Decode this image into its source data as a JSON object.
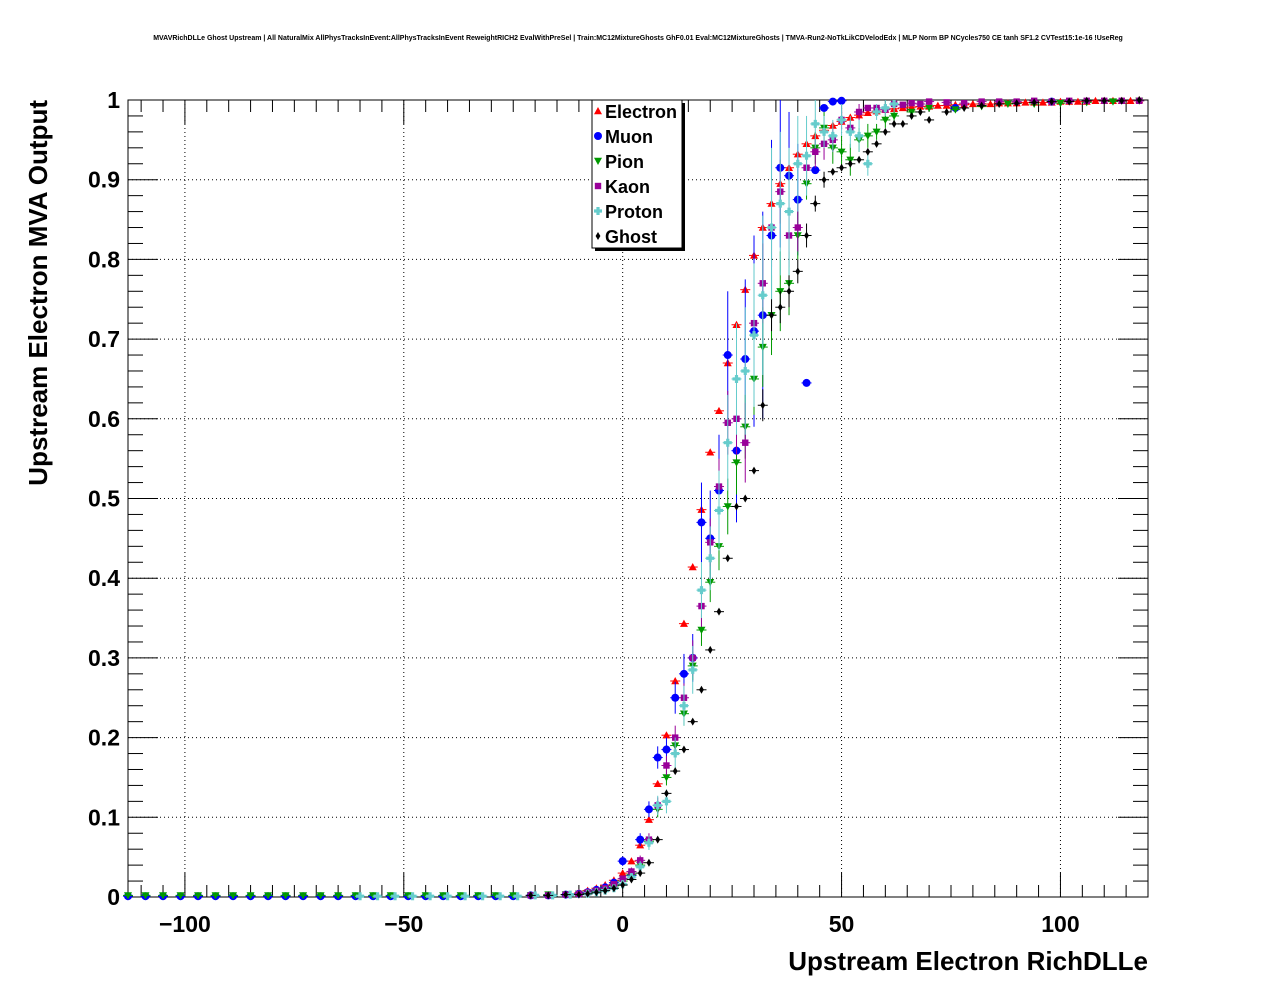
{
  "title": "MVAVRichDLLe Ghost Upstream | All NaturalMix AllPhysTracksInEvent:AllPhysTracksInEvent ReweightRICH2 EvalWithPreSel | Train:MC12MixtureGhosts GhF0.01 Eval:MC12MixtureGhosts | TMVA-Run2-NoTkLikCDVelodEdx | MLP Norm BP NCycles750 CE tanh SF1.2 CVTest15:1e-16 !UseReg",
  "chart_data": {
    "type": "scatter",
    "title": "MVAVRichDLLe Ghost Upstream | All NaturalMix AllPhysTracksInEvent:AllPhysTracksInEvent ReweightRICH2 EvalWithPreSel | Train:MC12MixtureGhosts GhF0.01 Eval:MC12MixtureGhosts | TMVA-Run2-NoTkLikCDVelodEdx | MLP Norm BP NCycles750 CE tanh SF1.2 CVTest15:1e-16 !UseReg",
    "xlabel": "Upstream Electron RichDLLe",
    "ylabel": "Upstream Electron MVA Output",
    "xlim": [
      -113,
      120
    ],
    "ylim": [
      0,
      1
    ],
    "xticks": [
      -100,
      -50,
      0,
      50,
      100
    ],
    "xtick_labels": [
      "−100",
      "−50",
      "0",
      "50",
      "100"
    ],
    "yticks": [
      0,
      0.1,
      0.2,
      0.3,
      0.4,
      0.5,
      0.6,
      0.7,
      0.8,
      0.9,
      1
    ],
    "ytick_labels": [
      "0",
      "0.1",
      "0.2",
      "0.3",
      "0.4",
      "0.5",
      "0.6",
      "0.7",
      "0.8",
      "0.9",
      "1"
    ],
    "grid": true,
    "legend_position": "top-center",
    "series": [
      {
        "name": "Electron",
        "color": "#ff0000",
        "marker": "triangle-up",
        "x": [
          -10,
          -8,
          -6,
          -4,
          -2,
          0,
          2,
          4,
          6,
          8,
          10,
          12,
          14,
          16,
          18,
          20,
          22,
          24,
          26,
          28,
          30,
          32,
          34,
          36,
          38,
          40,
          42,
          44,
          46,
          48,
          50,
          52,
          54,
          56,
          58,
          60,
          62,
          64,
          66,
          68,
          70,
          72,
          74,
          76,
          78,
          80,
          82,
          84,
          86,
          88,
          90,
          92,
          94,
          96,
          98,
          100,
          102,
          104,
          106,
          108,
          110,
          112,
          114,
          116,
          118
        ],
        "y": [
          0.005,
          0.008,
          0.011,
          0.015,
          0.021,
          0.03,
          0.045,
          0.065,
          0.097,
          0.142,
          0.203,
          0.271,
          0.343,
          0.414,
          0.486,
          0.558,
          0.61,
          0.67,
          0.718,
          0.762,
          0.805,
          0.84,
          0.87,
          0.895,
          0.915,
          0.932,
          0.945,
          0.955,
          0.962,
          0.968,
          0.973,
          0.978,
          0.981,
          0.984,
          0.986,
          0.988,
          0.989,
          0.99,
          0.991,
          0.992,
          0.992,
          0.993,
          0.993,
          0.994,
          0.994,
          0.995,
          0.995,
          0.995,
          0.996,
          0.996,
          0.996,
          0.997,
          0.997,
          0.997,
          0.997,
          0.998,
          0.998,
          0.998,
          0.998,
          0.999,
          0.999,
          0.999,
          0.999,
          0.999,
          1.0
        ]
      },
      {
        "name": "Muon",
        "color": "#0000ff",
        "marker": "circle",
        "x": [
          -113,
          -109,
          -105,
          -101,
          -97,
          -93,
          -89,
          -85,
          -81,
          -77,
          -73,
          -69,
          -65,
          -61,
          -57,
          -53,
          -49,
          -45,
          -41,
          -37,
          -33,
          -29,
          -25,
          -21,
          -17,
          -13,
          -10,
          -8,
          -6,
          -4,
          -2,
          0,
          2,
          4,
          6,
          8,
          10,
          12,
          14,
          16,
          18,
          20,
          22,
          24,
          26,
          28,
          30,
          32,
          34,
          36,
          38,
          40,
          42,
          44,
          46,
          48,
          50,
          76,
          98
        ],
        "y": [
          0.001,
          0.001,
          0.001,
          0.001,
          0.001,
          0.001,
          0.001,
          0.001,
          0.001,
          0.001,
          0.001,
          0.001,
          0.001,
          0.001,
          0.001,
          0.001,
          0.001,
          0.001,
          0.001,
          0.001,
          0.001,
          0.001,
          0.001,
          0.002,
          0.002,
          0.003,
          0.004,
          0.006,
          0.009,
          0.012,
          0.018,
          0.045,
          0.027,
          0.072,
          0.11,
          0.175,
          0.185,
          0.25,
          0.28,
          0.3,
          0.47,
          0.45,
          0.51,
          0.68,
          0.56,
          0.675,
          0.71,
          0.73,
          0.83,
          0.915,
          0.905,
          0.875,
          0.645,
          0.912,
          0.99,
          0.998,
          0.999,
          0.99,
          0.998
        ],
        "err": [
          0,
          0,
          0,
          0,
          0,
          0,
          0,
          0,
          0,
          0,
          0,
          0,
          0,
          0,
          0,
          0,
          0,
          0,
          0,
          0,
          0,
          0,
          0,
          0,
          0,
          0,
          0,
          0,
          0,
          0,
          0.004,
          0.006,
          0.005,
          0.008,
          0.01,
          0.014,
          0.015,
          0.02,
          0.025,
          0.03,
          0.05,
          0.06,
          0.07,
          0.08,
          0.09,
          0.1,
          0.12,
          0.13,
          0.12,
          0.1,
          0.08,
          0.07,
          0,
          0,
          0,
          0,
          0,
          0,
          0
        ]
      },
      {
        "name": "Pion",
        "color": "#009900",
        "marker": "triangle-down",
        "x": [
          -113,
          -109,
          -105,
          -101,
          -97,
          -93,
          -89,
          -85,
          -81,
          -77,
          -73,
          -69,
          -65,
          -61,
          -57,
          -53,
          -49,
          -45,
          -41,
          -37,
          -33,
          -29,
          -25,
          -21,
          -17,
          -13,
          -10,
          -8,
          -6,
          -4,
          -2,
          0,
          2,
          4,
          6,
          8,
          10,
          12,
          14,
          16,
          18,
          20,
          22,
          24,
          26,
          28,
          30,
          32,
          34,
          36,
          38,
          40,
          42,
          44,
          46,
          48,
          50,
          52,
          54,
          56,
          58,
          60,
          62,
          66,
          70,
          76,
          82,
          88,
          94,
          100,
          106,
          112,
          118
        ],
        "y": [
          0.002,
          0.002,
          0.002,
          0.002,
          0.002,
          0.002,
          0.002,
          0.002,
          0.002,
          0.002,
          0.002,
          0.002,
          0.002,
          0.002,
          0.002,
          0.002,
          0.002,
          0.002,
          0.002,
          0.002,
          0.002,
          0.002,
          0.002,
          0.002,
          0.003,
          0.003,
          0.004,
          0.005,
          0.007,
          0.01,
          0.014,
          0.02,
          0.028,
          0.04,
          0.07,
          0.11,
          0.15,
          0.19,
          0.23,
          0.29,
          0.335,
          0.395,
          0.44,
          0.49,
          0.545,
          0.59,
          0.65,
          0.69,
          0.73,
          0.76,
          0.77,
          0.83,
          0.895,
          0.94,
          0.965,
          0.94,
          0.935,
          0.925,
          0.95,
          0.955,
          0.96,
          0.975,
          0.98,
          0.985,
          0.99,
          0.988,
          0.992,
          0.995,
          0.995,
          0.996,
          0.997,
          0.998,
          0.999
        ],
        "err": [
          0,
          0,
          0,
          0,
          0,
          0,
          0,
          0,
          0,
          0,
          0,
          0,
          0,
          0,
          0,
          0,
          0,
          0,
          0,
          0,
          0,
          0,
          0,
          0,
          0,
          0,
          0,
          0,
          0,
          0,
          0,
          0.004,
          0.005,
          0.006,
          0.008,
          0.01,
          0.01,
          0.012,
          0.015,
          0.018,
          0.02,
          0.025,
          0.03,
          0.035,
          0.04,
          0.04,
          0.045,
          0.05,
          0.05,
          0.05,
          0.04,
          0.03,
          0.02,
          0.02,
          0.02,
          0.02,
          0.02,
          0.02,
          0.015,
          0.015,
          0.01,
          0.01,
          0.01,
          0,
          0,
          0,
          0,
          0,
          0,
          0,
          0,
          0,
          0
        ]
      },
      {
        "name": "Kaon",
        "color": "#990099",
        "marker": "square",
        "x": [
          -21,
          -17,
          -13,
          -10,
          -8,
          -6,
          -4,
          -2,
          0,
          2,
          4,
          6,
          8,
          10,
          12,
          14,
          16,
          18,
          20,
          22,
          24,
          26,
          28,
          30,
          32,
          34,
          36,
          38,
          40,
          42,
          44,
          46,
          48,
          50,
          52,
          54,
          56,
          58,
          60,
          62,
          64,
          66,
          68,
          70,
          74,
          78,
          82,
          86,
          90,
          94,
          98,
          102,
          106,
          110,
          114,
          118
        ],
        "y": [
          0.002,
          0.002,
          0.003,
          0.004,
          0.006,
          0.008,
          0.011,
          0.016,
          0.023,
          0.032,
          0.046,
          0.072,
          0.115,
          0.165,
          0.2,
          0.25,
          0.3,
          0.365,
          0.445,
          0.515,
          0.595,
          0.6,
          0.57,
          0.72,
          0.77,
          0.84,
          0.885,
          0.83,
          0.84,
          0.915,
          0.935,
          0.945,
          0.95,
          0.975,
          0.965,
          0.985,
          0.99,
          0.99,
          0.988,
          0.995,
          0.994,
          0.996,
          0.995,
          0.998,
          0.997,
          0.996,
          0.998,
          0.998,
          0.998,
          0.999,
          0.998,
          0.999,
          0.999,
          0.999,
          0.999,
          0.999
        ],
        "err": [
          0,
          0,
          0,
          0,
          0,
          0,
          0,
          0,
          0.004,
          0.005,
          0.006,
          0.008,
          0.01,
          0.012,
          0.015,
          0.018,
          0.022,
          0.026,
          0.03,
          0.035,
          0.04,
          0.045,
          0.05,
          0.05,
          0.05,
          0.05,
          0.04,
          0.04,
          0.03,
          0.02,
          0.02,
          0.02,
          0.015,
          0.012,
          0.01,
          0.01,
          0,
          0,
          0,
          0,
          0,
          0,
          0,
          0,
          0,
          0,
          0,
          0,
          0,
          0,
          0,
          0,
          0,
          0,
          0,
          0
        ]
      },
      {
        "name": "Proton",
        "color": "#66cccc",
        "marker": "cross",
        "x": [
          -60,
          -56,
          -52,
          -48,
          -44,
          -40,
          -36,
          -32,
          -28,
          -24,
          -20,
          -16,
          -12,
          -8,
          -6,
          -4,
          -2,
          0,
          2,
          4,
          6,
          8,
          10,
          12,
          14,
          16,
          18,
          20,
          22,
          24,
          26,
          28,
          30,
          32,
          34,
          36,
          38,
          40,
          42,
          44,
          46,
          48,
          50,
          52,
          54,
          56,
          58,
          60,
          62
        ],
        "y": [
          0.001,
          0.001,
          0.001,
          0.001,
          0.001,
          0.001,
          0.001,
          0.001,
          0.001,
          0.001,
          0.002,
          0.002,
          0.003,
          0.004,
          0.006,
          0.008,
          0.011,
          0.016,
          0.025,
          0.038,
          0.068,
          0.115,
          0.12,
          0.18,
          0.24,
          0.285,
          0.385,
          0.425,
          0.485,
          0.57,
          0.65,
          0.66,
          0.705,
          0.755,
          0.84,
          0.87,
          0.86,
          0.92,
          0.93,
          0.97,
          0.96,
          0.955,
          0.975,
          0.96,
          0.955,
          0.92,
          0.985,
          0.99,
          0.995
        ],
        "err": [
          0,
          0,
          0,
          0,
          0,
          0,
          0,
          0,
          0,
          0,
          0,
          0,
          0,
          0,
          0,
          0,
          0,
          0.004,
          0.005,
          0.007,
          0.009,
          0.012,
          0.015,
          0.02,
          0.025,
          0.03,
          0.035,
          0.04,
          0.05,
          0.06,
          0.07,
          0.08,
          0.09,
          0.1,
          0.1,
          0.09,
          0.08,
          0.06,
          0.05,
          0.03,
          0.02,
          0.02,
          0.02,
          0.02,
          0.02,
          0.015,
          0.01,
          0.01,
          0.01
        ]
      },
      {
        "name": "Ghost",
        "color": "#000000",
        "marker": "diamond",
        "x": [
          -21,
          -17,
          -13,
          -10,
          -8,
          -6,
          -4,
          -2,
          0,
          2,
          4,
          6,
          8,
          10,
          12,
          14,
          16,
          18,
          20,
          22,
          24,
          26,
          28,
          30,
          32,
          34,
          36,
          38,
          40,
          42,
          44,
          46,
          48,
          50,
          52,
          54,
          56,
          58,
          60,
          62,
          64,
          66,
          68,
          70,
          74,
          78,
          82,
          86,
          90,
          94,
          98,
          102,
          106,
          110,
          114,
          118
        ],
        "y": [
          0.002,
          0.002,
          0.003,
          0.003,
          0.004,
          0.006,
          0.008,
          0.011,
          0.015,
          0.022,
          0.03,
          0.043,
          0.072,
          0.13,
          0.158,
          0.185,
          0.22,
          0.26,
          0.31,
          0.358,
          0.425,
          0.49,
          0.5,
          0.535,
          0.617,
          0.73,
          0.74,
          0.76,
          0.785,
          0.83,
          0.87,
          0.9,
          0.91,
          0.915,
          0.92,
          0.925,
          0.935,
          0.945,
          0.96,
          0.97,
          0.97,
          0.98,
          0.985,
          0.975,
          0.985,
          0.99,
          0.993,
          0.995,
          0.996,
          0.997,
          0.998,
          0.998,
          0.999,
          0.999,
          0.999,
          1.0
        ],
        "err": [
          0,
          0,
          0,
          0,
          0,
          0,
          0,
          0,
          0,
          0,
          0,
          0,
          0,
          0,
          0,
          0,
          0,
          0,
          0,
          0,
          0,
          0,
          0,
          0,
          0.02,
          0.02,
          0.02,
          0.02,
          0.015,
          0.015,
          0.01,
          0.01,
          0,
          0,
          0,
          0,
          0,
          0,
          0,
          0,
          0,
          0,
          0,
          0,
          0,
          0,
          0,
          0,
          0,
          0,
          0,
          0,
          0,
          0,
          0,
          0
        ]
      }
    ]
  }
}
